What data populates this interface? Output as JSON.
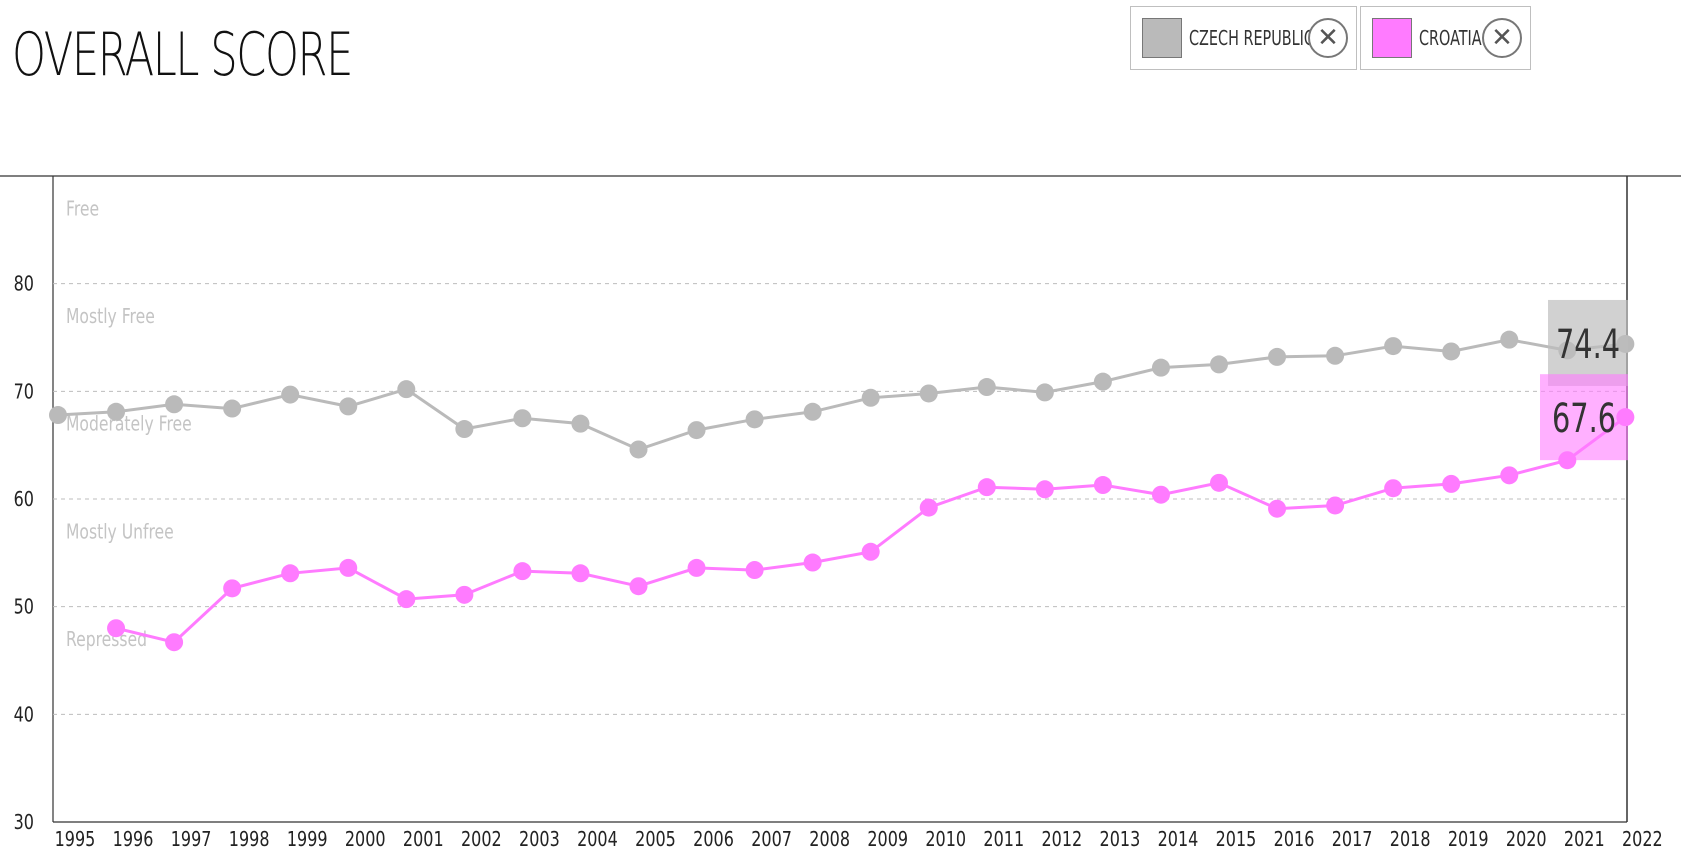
{
  "page": {
    "title": "OVERALL SCORE"
  },
  "legend": [
    {
      "name": "CZECH REPUBLIC",
      "color": "#bababa",
      "close_icon": "close-icon"
    },
    {
      "name": "CROATIA",
      "color": "#ff7bff",
      "close_icon": "close-icon"
    }
  ],
  "chart_data": {
    "type": "line",
    "title": "OVERALL SCORE",
    "xlabel": "",
    "ylabel": "",
    "ylim": [
      30,
      90
    ],
    "yticks": [
      30,
      40,
      50,
      60,
      70,
      80
    ],
    "x": [
      1995,
      1996,
      1997,
      1998,
      1999,
      2000,
      2001,
      2002,
      2003,
      2004,
      2005,
      2006,
      2007,
      2008,
      2009,
      2010,
      2011,
      2012,
      2013,
      2014,
      2015,
      2016,
      2017,
      2018,
      2019,
      2020,
      2021,
      2022
    ],
    "zones": [
      {
        "label": "Free",
        "value": 87
      },
      {
        "label": "Mostly Free",
        "value": 77
      },
      {
        "label": "Moderately Free",
        "value": 67
      },
      {
        "label": "Mostly Unfree",
        "value": 57
      },
      {
        "label": "Repressed",
        "value": 47
      }
    ],
    "grid": "horizontal dashed",
    "series": [
      {
        "name": "CZECH REPUBLIC",
        "color": "#bababa",
        "values": [
          67.8,
          68.1,
          68.8,
          68.4,
          69.7,
          68.6,
          70.2,
          66.5,
          67.5,
          67.0,
          64.6,
          66.4,
          67.4,
          68.1,
          69.4,
          69.8,
          70.4,
          69.9,
          70.9,
          72.2,
          72.5,
          73.2,
          73.3,
          74.2,
          73.7,
          74.8,
          73.8,
          74.4
        ],
        "final_label": "74.4"
      },
      {
        "name": "CROATIA",
        "color": "#ff7bff",
        "values": [
          null,
          48.0,
          46.7,
          51.7,
          53.1,
          53.6,
          50.7,
          51.1,
          53.3,
          53.1,
          51.9,
          53.6,
          53.4,
          54.1,
          55.1,
          59.2,
          61.1,
          60.9,
          61.3,
          60.4,
          61.5,
          59.1,
          59.4,
          61.0,
          61.4,
          62.2,
          63.6,
          67.6
        ],
        "final_label": "67.6"
      }
    ]
  }
}
